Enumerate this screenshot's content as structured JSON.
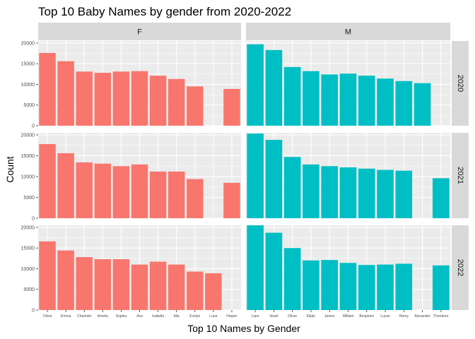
{
  "chart_data": {
    "type": "bar",
    "title": "Top 10 Baby Names by gender from 2020-2022",
    "xlabel": "Top 10 Names by Gender",
    "ylabel": "Count",
    "ylim": [
      0,
      20500
    ],
    "yticks": [
      0,
      5000,
      10000,
      15000,
      20000
    ],
    "facet_columns": [
      "F",
      "M"
    ],
    "facet_rows": [
      "2020",
      "2021",
      "2022"
    ],
    "categories": {
      "F": [
        "Olivia",
        "Emma",
        "Charlotte",
        "Amelia",
        "Sophia",
        "Ava",
        "Isabella",
        "Mia",
        "Evelyn",
        "Luna",
        "Harper"
      ],
      "M": [
        "Liam",
        "Noah",
        "Oliver",
        "Elijah",
        "James",
        "William",
        "Benjamin",
        "Lucas",
        "Henry",
        "Alexander",
        "Theodore"
      ]
    },
    "series": [
      {
        "row": "2020",
        "col": "F",
        "values": [
          17600,
          15600,
          13100,
          12800,
          13100,
          13200,
          12100,
          11300,
          9500,
          null,
          8900
        ]
      },
      {
        "row": "2020",
        "col": "M",
        "values": [
          19700,
          18300,
          14200,
          13200,
          12400,
          12600,
          12100,
          11400,
          10800,
          10300,
          null
        ]
      },
      {
        "row": "2021",
        "col": "F",
        "values": [
          17800,
          15600,
          13400,
          13100,
          12500,
          12900,
          11200,
          11200,
          9400,
          null,
          8500
        ]
      },
      {
        "row": "2021",
        "col": "M",
        "values": [
          20300,
          18800,
          14700,
          12900,
          12500,
          12200,
          11900,
          11600,
          11400,
          null,
          9600
        ]
      },
      {
        "row": "2022",
        "col": "F",
        "values": [
          16600,
          14400,
          12800,
          12300,
          12300,
          11000,
          11700,
          11000,
          9300,
          8900,
          null
        ]
      },
      {
        "row": "2022",
        "col": "M",
        "values": [
          20500,
          18700,
          15000,
          12000,
          12100,
          11400,
          10900,
          11000,
          11200,
          null,
          10800
        ]
      }
    ],
    "colors": {
      "F": "#F8766D",
      "M": "#00BFC4",
      "panel": "#EBEBEB",
      "grid": "#FFFFFF",
      "strip": "#D9D9D9"
    },
    "grid": true,
    "legend": "none"
  }
}
